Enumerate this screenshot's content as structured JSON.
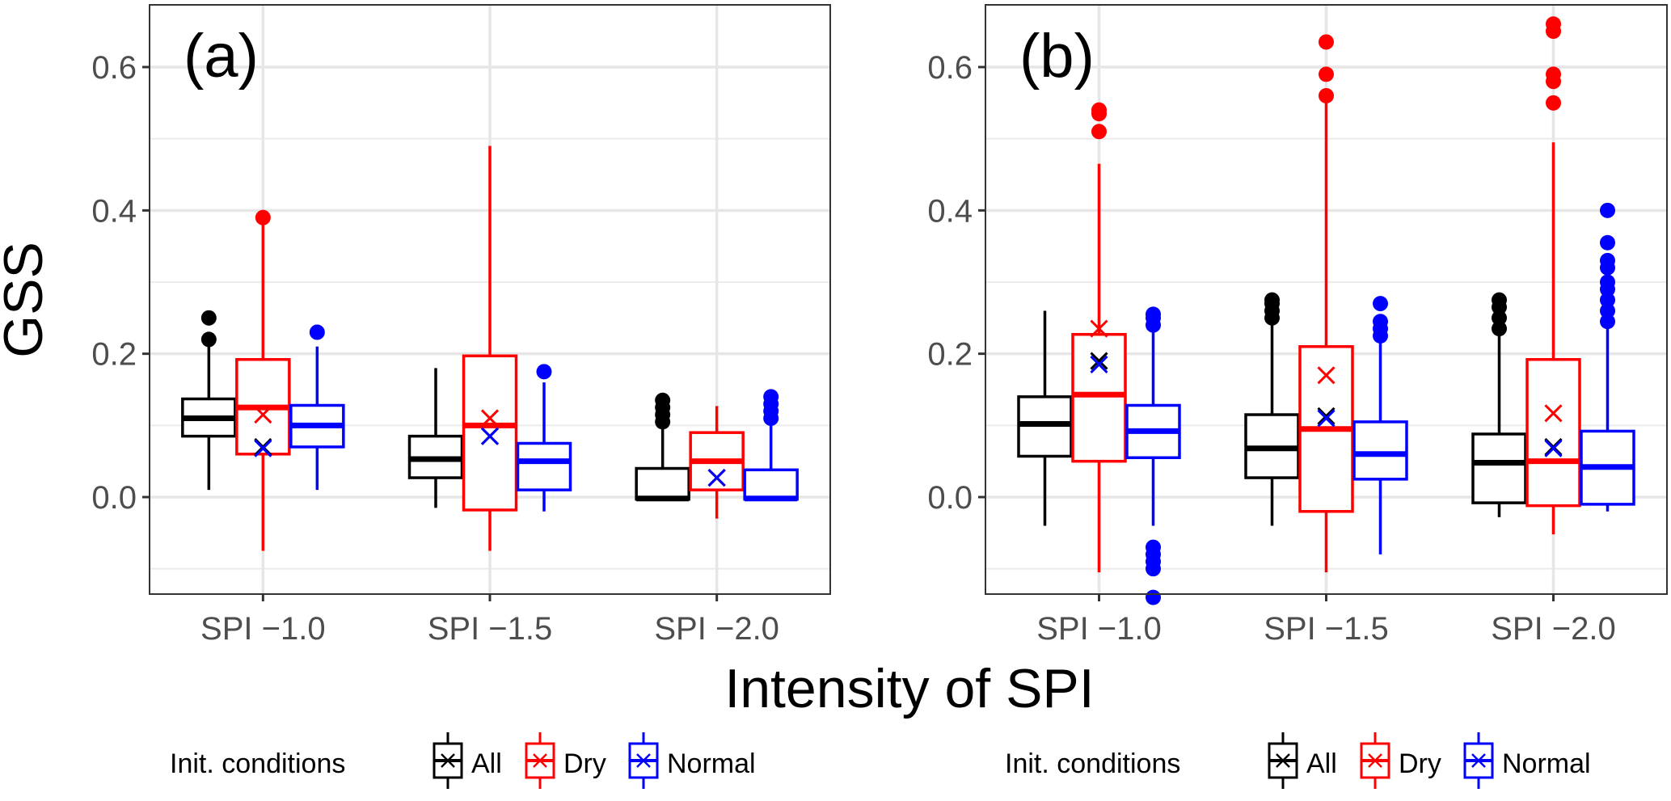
{
  "chart_data": [
    {
      "type": "box",
      "panel_label": "(a)",
      "ylabel": "GSS",
      "xlabel": "Intensity of SPI",
      "ylim": [
        -0.14,
        0.69
      ],
      "yticks": [
        "0.0",
        "0.2",
        "0.4",
        "0.6"
      ],
      "ytick_values": [
        0.0,
        0.2,
        0.4,
        0.6
      ],
      "grid": true,
      "categories": [
        "SPI −1.0",
        "SPI −1.5",
        "SPI −2.0"
      ],
      "series": [
        {
          "name": "All",
          "color": "#000000",
          "boxes": [
            {
              "min": 0.01,
              "q1": 0.085,
              "median": 0.11,
              "q3": 0.137,
              "max": 0.21,
              "mean": 0.07,
              "outliers": [
                0.22,
                0.25
              ]
            },
            {
              "min": -0.015,
              "q1": 0.027,
              "median": 0.053,
              "q3": 0.085,
              "max": 0.18,
              "mean": 0.085,
              "outliers": []
            },
            {
              "min": -0.005,
              "q1": -0.003,
              "median": -0.002,
              "q3": 0.04,
              "max": 0.1,
              "mean": 0.027,
              "outliers": [
                0.105,
                0.115,
                0.125,
                0.135
              ]
            }
          ]
        },
        {
          "name": "Dry",
          "color": "#ff0000",
          "boxes": [
            {
              "min": -0.075,
              "q1": 0.06,
              "median": 0.125,
              "q3": 0.192,
              "max": 0.385,
              "mean": 0.115,
              "outliers": [
                0.39
              ]
            },
            {
              "min": -0.075,
              "q1": -0.018,
              "median": 0.1,
              "q3": 0.197,
              "max": 0.49,
              "mean": 0.11,
              "outliers": []
            },
            {
              "min": -0.03,
              "q1": 0.01,
              "median": 0.05,
              "q3": 0.09,
              "max": 0.127,
              "mean": 0.027,
              "outliers": []
            }
          ]
        },
        {
          "name": "Normal",
          "color": "#0000ff",
          "boxes": [
            {
              "min": 0.01,
              "q1": 0.07,
              "median": 0.1,
              "q3": 0.128,
              "max": 0.21,
              "mean": 0.068,
              "outliers": [
                0.23
              ]
            },
            {
              "min": -0.02,
              "q1": 0.01,
              "median": 0.05,
              "q3": 0.075,
              "max": 0.16,
              "mean": 0.085,
              "outliers": [
                0.175
              ]
            },
            {
              "min": -0.005,
              "q1": -0.003,
              "median": -0.002,
              "q3": 0.038,
              "max": 0.1,
              "mean": 0.027,
              "outliers": [
                0.11,
                0.12,
                0.13,
                0.14
              ]
            }
          ]
        }
      ]
    },
    {
      "type": "box",
      "panel_label": "(b)",
      "ylabel": "GSS",
      "xlabel": "Intensity of SPI",
      "ylim": [
        -0.14,
        0.69
      ],
      "yticks": [
        "0.0",
        "0.2",
        "0.4",
        "0.6"
      ],
      "ytick_values": [
        0.0,
        0.2,
        0.4,
        0.6
      ],
      "grid": true,
      "categories": [
        "SPI −1.0",
        "SPI −1.5",
        "SPI −2.0"
      ],
      "series": [
        {
          "name": "All",
          "color": "#000000",
          "boxes": [
            {
              "min": -0.04,
              "q1": 0.057,
              "median": 0.102,
              "q3": 0.14,
              "max": 0.26,
              "mean": 0.19,
              "outliers": []
            },
            {
              "min": -0.04,
              "q1": 0.027,
              "median": 0.068,
              "q3": 0.115,
              "max": 0.245,
              "mean": 0.113,
              "outliers": [
                0.25,
                0.26,
                0.27,
                0.275
              ]
            },
            {
              "min": -0.028,
              "q1": -0.008,
              "median": 0.048,
              "q3": 0.088,
              "max": 0.23,
              "mean": 0.07,
              "outliers": [
                0.235,
                0.25,
                0.265,
                0.275
              ]
            }
          ]
        },
        {
          "name": "Dry",
          "color": "#ff0000",
          "boxes": [
            {
              "min": -0.105,
              "q1": 0.05,
              "median": 0.143,
              "q3": 0.227,
              "max": 0.465,
              "mean": 0.235,
              "outliers": [
                0.51,
                0.535,
                0.54
              ]
            },
            {
              "min": -0.105,
              "q1": -0.02,
              "median": 0.095,
              "q3": 0.21,
              "max": 0.555,
              "mean": 0.17,
              "outliers": [
                0.56,
                0.59,
                0.635
              ]
            },
            {
              "min": -0.052,
              "q1": -0.012,
              "median": 0.05,
              "q3": 0.192,
              "max": 0.495,
              "mean": 0.117,
              "outliers": [
                0.55,
                0.58,
                0.59,
                0.65,
                0.66
              ]
            }
          ]
        },
        {
          "name": "Normal",
          "color": "#0000ff",
          "boxes": [
            {
              "min": -0.04,
              "q1": 0.055,
              "median": 0.092,
              "q3": 0.128,
              "max": 0.235,
              "mean": 0.185,
              "outliers": [
                0.24,
                0.25,
                0.255,
                -0.07,
                -0.08,
                -0.09,
                -0.1,
                -0.14
              ]
            },
            {
              "min": -0.08,
              "q1": 0.025,
              "median": 0.06,
              "q3": 0.105,
              "max": 0.22,
              "mean": 0.11,
              "outliers": [
                0.225,
                0.235,
                0.245,
                0.27
              ]
            },
            {
              "min": -0.02,
              "q1": -0.01,
              "median": 0.042,
              "q3": 0.092,
              "max": 0.24,
              "mean": 0.068,
              "outliers": [
                0.245,
                0.26,
                0.275,
                0.29,
                0.3,
                0.32,
                0.33,
                0.355,
                0.4
              ]
            }
          ]
        }
      ]
    }
  ],
  "legend": {
    "title": "Init. conditions",
    "items": [
      {
        "label": "All",
        "color": "#000000"
      },
      {
        "label": "Dry",
        "color": "#ff0000"
      },
      {
        "label": "Normal",
        "color": "#0000ff"
      }
    ]
  }
}
